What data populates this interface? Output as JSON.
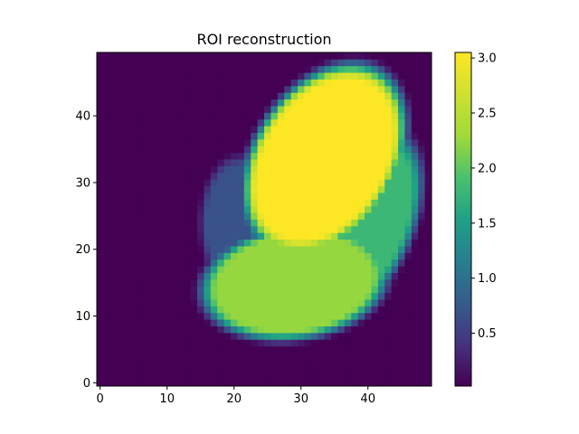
{
  "chart_data": {
    "type": "heatmap",
    "title": "ROI reconstruction",
    "xlabel": "",
    "ylabel": "",
    "grid_shape": [
      50,
      50
    ],
    "xlim": [
      -0.5,
      49.5
    ],
    "ylim": [
      -0.5,
      49.5
    ],
    "origin": "lower",
    "x_ticks": [
      0,
      10,
      20,
      30,
      40
    ],
    "y_ticks": [
      0,
      10,
      20,
      30,
      40
    ],
    "colormap": "viridis",
    "value_range": [
      0.02,
      3.05
    ],
    "colorbar": {
      "ticks": [
        "0.5",
        "1.0",
        "1.5",
        "2.0",
        "2.5",
        "3.0"
      ],
      "tick_values": [
        0.5,
        1.0,
        1.5,
        2.0,
        2.5,
        3.0
      ]
    },
    "regions": [
      {
        "value": 3.05,
        "cx": 33.5,
        "cy": 33.5,
        "rx": 10.5,
        "ry": 15.5,
        "angle_deg": -32
      },
      {
        "value": 2.25,
        "cx": 29.0,
        "cy": 15.0,
        "rx": 14.0,
        "ry": 8.5,
        "angle_deg": 8
      },
      {
        "value": 1.8,
        "cx": 38.0,
        "cy": 23.5,
        "rx": 8.5,
        "ry": 15.5,
        "angle_deg": -25
      },
      {
        "value": 0.7,
        "cx": 21.0,
        "cy": 24.0,
        "rx": 6.0,
        "ry": 10.0,
        "angle_deg": 0
      }
    ],
    "background_value": 0.02
  }
}
